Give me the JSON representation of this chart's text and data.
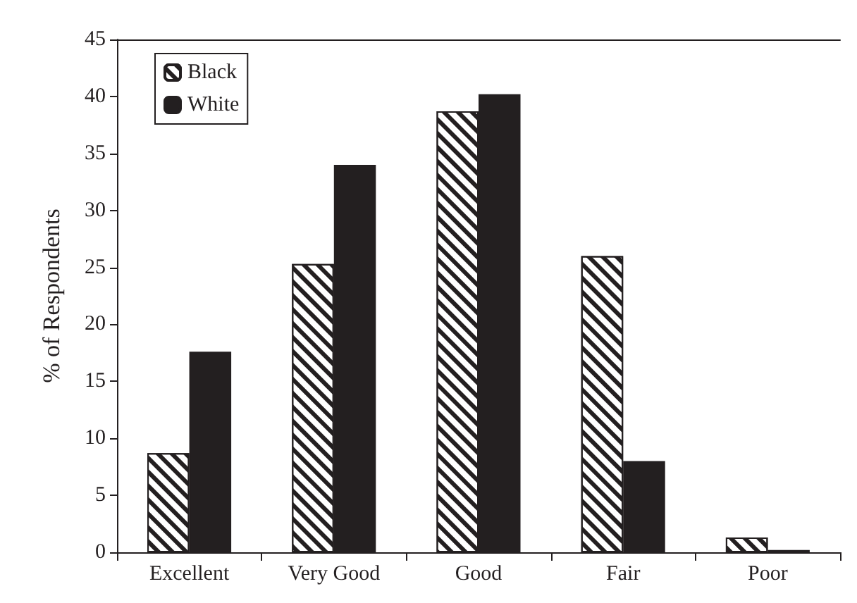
{
  "chart_data": {
    "type": "bar",
    "ylabel": "% of Respondents",
    "categories": [
      "Excellent",
      "Very Good",
      "Good",
      "Fair",
      "Poor"
    ],
    "series": [
      {
        "name": "Black",
        "color": "#231f20",
        "values": [
          8.7,
          25.3,
          38.7,
          26.0,
          1.3
        ]
      },
      {
        "name": "White",
        "color": "#231f20",
        "values": [
          17.6,
          34.0,
          40.2,
          8.0,
          0.2
        ]
      }
    ],
    "ylim": [
      0,
      45
    ],
    "yticks": [
      0,
      5,
      10,
      15,
      20,
      25,
      30,
      35,
      40,
      45
    ],
    "grid": false,
    "legend": "top left"
  }
}
